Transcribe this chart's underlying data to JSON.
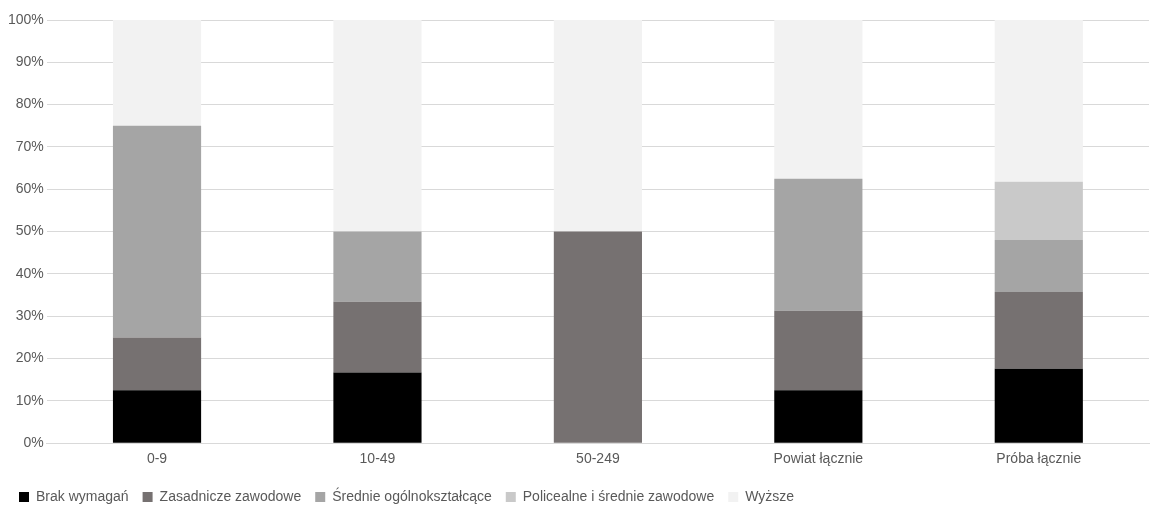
{
  "chart_data": {
    "type": "bar",
    "stacked": true,
    "categories": [
      "0-9",
      "10-49",
      "50-249",
      "Powiat łącznie",
      "Próba łącznie"
    ],
    "series": [
      {
        "name": "Brak wymagań",
        "color": "#000000",
        "values": [
          12.5,
          16.7,
          0,
          12.5,
          17.6
        ]
      },
      {
        "name": "Zasadnicze zawodowe",
        "color": "#767171",
        "values": [
          12.5,
          16.7,
          50,
          18.8,
          18.1
        ]
      },
      {
        "name": "Średnie ogólnokształcące",
        "color": "#a5a5a5",
        "values": [
          50,
          16.6,
          0,
          31.2,
          12.3
        ]
      },
      {
        "name": "Policealne i średnie zawodowe",
        "color": "#c9c9c9",
        "values": [
          0,
          0,
          0,
          0,
          13.8
        ]
      },
      {
        "name": "Wyższe",
        "color": "#f2f2f2",
        "values": [
          25,
          50,
          50,
          37.5,
          38.2
        ]
      }
    ],
    "ylim": [
      0,
      100
    ],
    "yticks": [
      {
        "value": 0,
        "label": "0%"
      },
      {
        "value": 10,
        "label": "10%"
      },
      {
        "value": 20,
        "label": "20%"
      },
      {
        "value": 30,
        "label": "30%"
      },
      {
        "value": 40,
        "label": "40%"
      },
      {
        "value": 50,
        "label": "50%"
      },
      {
        "value": 60,
        "label": "60%"
      },
      {
        "value": 70,
        "label": "70%"
      },
      {
        "value": 80,
        "label": "80%"
      },
      {
        "value": 90,
        "label": "90%"
      },
      {
        "value": 100,
        "label": "100%"
      }
    ],
    "grid": "y",
    "legend": "bottom"
  }
}
